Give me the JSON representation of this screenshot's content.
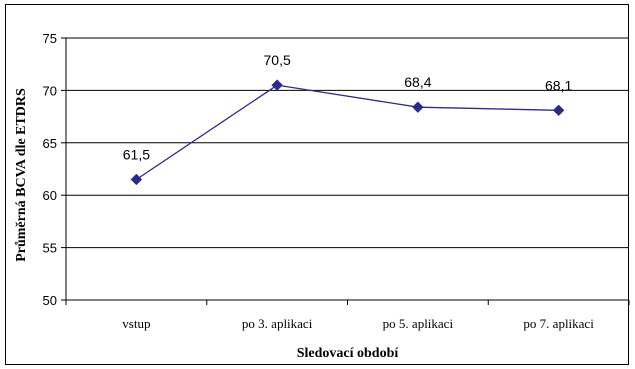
{
  "chart_data": {
    "type": "line",
    "categories": [
      "vstup",
      "po 3. aplikaci",
      "po 5. aplikaci",
      "po 7. aplikaci"
    ],
    "series": [
      {
        "values": [
          61.5,
          70.5,
          68.4,
          68.1
        ]
      }
    ],
    "data_labels": [
      "61,5",
      "70,5",
      "68,4",
      "68,1"
    ],
    "xlabel": "Sledovací období",
    "ylabel": "Průměrná BCVA dle ETDRS",
    "ylim": [
      50,
      75
    ],
    "yticks": [
      50,
      55,
      60,
      65,
      70,
      75
    ],
    "grid": true,
    "line_color": "#2b2b8c",
    "marker": "diamond"
  }
}
